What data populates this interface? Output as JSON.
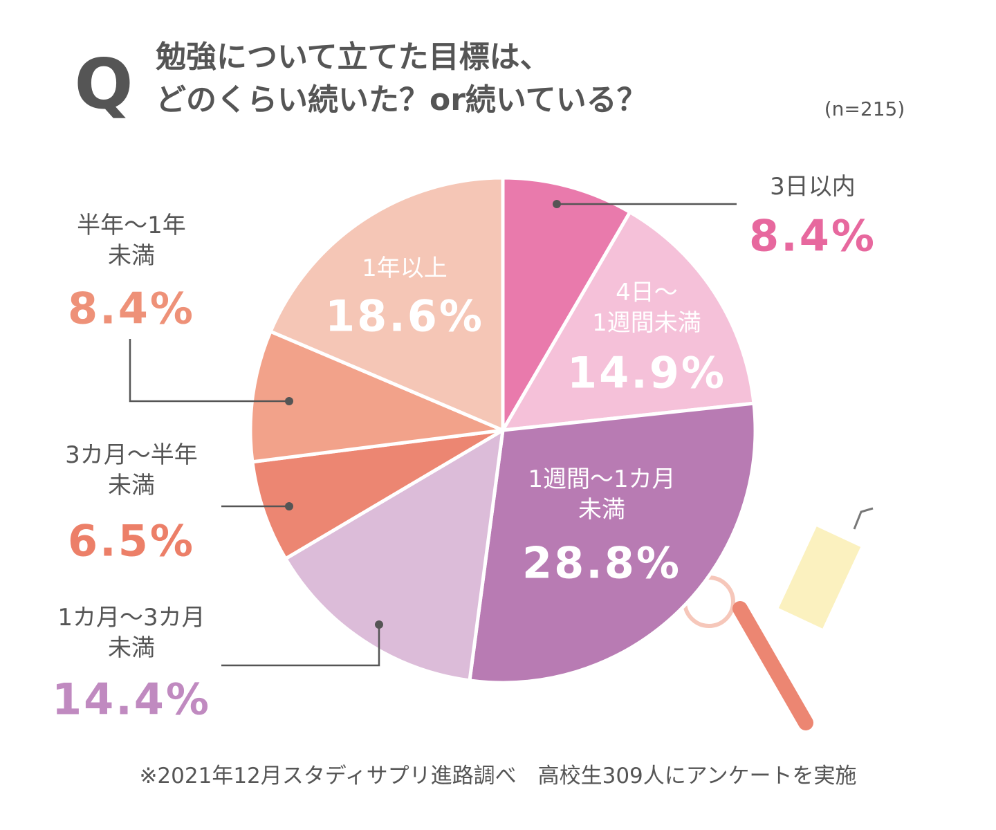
{
  "chart_data": {
    "type": "pie",
    "question_mark": "Q",
    "title": "勉強について立てた目標は、\nどのくらい続いた？or続いている？",
    "subtitle": "(n=215)",
    "categories": [
      "3日以内",
      "4日〜\n1週間未満",
      "1週間〜1カ月\n未満",
      "1カ月〜3カ月\n未満",
      "3カ月〜半年\n未満",
      "半年〜1年\n未満",
      "1年以上"
    ],
    "values": [
      8.4,
      14.9,
      28.8,
      14.4,
      6.5,
      8.4,
      18.6
    ],
    "value_labels": [
      "8.4%",
      "14.9%",
      "28.8%",
      "14.4%",
      "6.5%",
      "8.4%",
      "18.6%"
    ],
    "colors": [
      "#e97aac",
      "#f5c1d9",
      "#b87bb3",
      "#dcbcd9",
      "#ec8672",
      "#f2a28a",
      "#f5c6b6"
    ],
    "note": "※2021年12月スタディサプリ進路調べ　高校生309人にアンケートを実施"
  }
}
